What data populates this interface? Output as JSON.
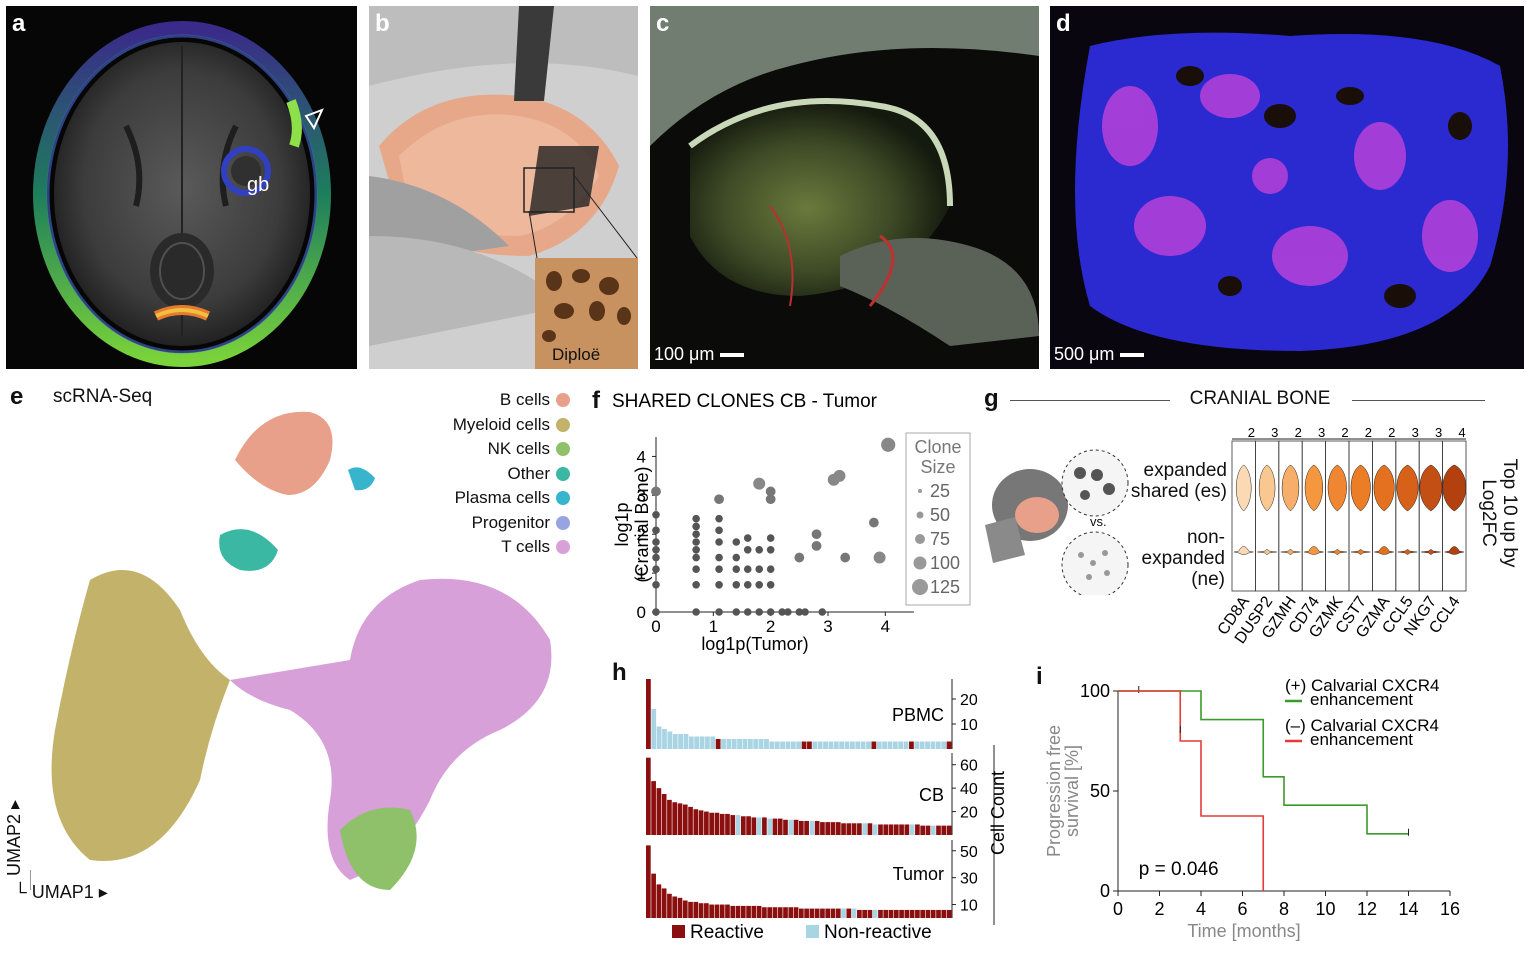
{
  "panels": {
    "a": {
      "label": "a",
      "annotation": "gb"
    },
    "b": {
      "label": "b",
      "inset_label": "Diploë"
    },
    "c": {
      "label": "c",
      "scalebar": "100 μm"
    },
    "d": {
      "label": "d",
      "scalebar": "500 μm"
    },
    "e": {
      "label": "e",
      "title": "scRNA-Seq",
      "axis_x": "UMAP1",
      "axis_y": "UMAP2",
      "legend": [
        {
          "name": "B cells",
          "color": "#e8a08a"
        },
        {
          "name": "Myeloid cells",
          "color": "#c3b26a"
        },
        {
          "name": "NK cells",
          "color": "#8fc06a"
        },
        {
          "name": "Other",
          "color": "#3bb8a4"
        },
        {
          "name": "Plasma cells",
          "color": "#38b4cc"
        },
        {
          "name": "Progenitor",
          "color": "#98a4e0"
        },
        {
          "name": "T cells",
          "color": "#d8a0d8"
        }
      ]
    },
    "f": {
      "label": "f"
    },
    "g": {
      "label": "g",
      "title": "CRANIAL BONE",
      "group_es": "expanded shared (es)",
      "group_ne": "non-expanded (ne)",
      "vs": "vs.",
      "right_label": "Top 10 up by Log2FC"
    },
    "h": {
      "label": "h"
    },
    "i": {
      "label": "i"
    }
  },
  "chart_data": [
    {
      "id": "f",
      "type": "scatter",
      "title": "SHARED CLONES CB - Tumor",
      "xlabel": "log1p(Tumor)",
      "ylabel": "log1p (Cranial Bone)",
      "xlim": [
        0,
        4.5
      ],
      "ylim": [
        0,
        4.5
      ],
      "xticks": [
        0,
        1,
        2,
        3,
        4
      ],
      "yticks": [
        0,
        1,
        2,
        3,
        4
      ],
      "size_legend_title": "Clone Size",
      "size_legend": [
        25,
        50,
        75,
        100,
        125
      ],
      "points": [
        {
          "x": 0,
          "y": 0,
          "s": 2
        },
        {
          "x": 0,
          "y": 0.7,
          "s": 2
        },
        {
          "x": 0,
          "y": 1.1,
          "s": 2
        },
        {
          "x": 0,
          "y": 1.4,
          "s": 2
        },
        {
          "x": 0,
          "y": 1.6,
          "s": 2
        },
        {
          "x": 0,
          "y": 1.8,
          "s": 2
        },
        {
          "x": 0,
          "y": 2.1,
          "s": 2
        },
        {
          "x": 0,
          "y": 2.5,
          "s": 2
        },
        {
          "x": 0,
          "y": 3.1,
          "s": 3
        },
        {
          "x": 0.7,
          "y": 0,
          "s": 2
        },
        {
          "x": 0.7,
          "y": 0.7,
          "s": 2
        },
        {
          "x": 0.7,
          "y": 1.1,
          "s": 2
        },
        {
          "x": 0.7,
          "y": 1.4,
          "s": 2
        },
        {
          "x": 0.7,
          "y": 1.6,
          "s": 2
        },
        {
          "x": 0.7,
          "y": 1.8,
          "s": 2
        },
        {
          "x": 0.7,
          "y": 2.0,
          "s": 2
        },
        {
          "x": 0.7,
          "y": 2.2,
          "s": 2
        },
        {
          "x": 0.7,
          "y": 2.4,
          "s": 2
        },
        {
          "x": 1.1,
          "y": 0,
          "s": 2
        },
        {
          "x": 1.1,
          "y": 0.7,
          "s": 2
        },
        {
          "x": 1.1,
          "y": 1.1,
          "s": 2
        },
        {
          "x": 1.1,
          "y": 1.4,
          "s": 2
        },
        {
          "x": 1.1,
          "y": 1.8,
          "s": 2
        },
        {
          "x": 1.1,
          "y": 2.1,
          "s": 2
        },
        {
          "x": 1.1,
          "y": 2.4,
          "s": 2
        },
        {
          "x": 1.1,
          "y": 2.9,
          "s": 3
        },
        {
          "x": 1.4,
          "y": 0,
          "s": 2
        },
        {
          "x": 1.4,
          "y": 0.7,
          "s": 2
        },
        {
          "x": 1.4,
          "y": 1.1,
          "s": 2
        },
        {
          "x": 1.4,
          "y": 1.4,
          "s": 2
        },
        {
          "x": 1.4,
          "y": 1.8,
          "s": 2
        },
        {
          "x": 1.6,
          "y": 0,
          "s": 2
        },
        {
          "x": 1.6,
          "y": 0.7,
          "s": 2
        },
        {
          "x": 1.6,
          "y": 1.1,
          "s": 2
        },
        {
          "x": 1.6,
          "y": 1.6,
          "s": 2
        },
        {
          "x": 1.6,
          "y": 1.9,
          "s": 2
        },
        {
          "x": 1.8,
          "y": 0,
          "s": 2
        },
        {
          "x": 1.8,
          "y": 0.7,
          "s": 2
        },
        {
          "x": 1.8,
          "y": 1.1,
          "s": 2
        },
        {
          "x": 1.8,
          "y": 1.6,
          "s": 2
        },
        {
          "x": 1.8,
          "y": 3.3,
          "s": 4
        },
        {
          "x": 2.0,
          "y": 0,
          "s": 2
        },
        {
          "x": 2.0,
          "y": 0.7,
          "s": 2
        },
        {
          "x": 2.0,
          "y": 1.1,
          "s": 2
        },
        {
          "x": 2.0,
          "y": 1.6,
          "s": 2
        },
        {
          "x": 2.0,
          "y": 1.9,
          "s": 2
        },
        {
          "x": 2.0,
          "y": 2.9,
          "s": 3
        },
        {
          "x": 2.0,
          "y": 3.1,
          "s": 3
        },
        {
          "x": 2.2,
          "y": 0,
          "s": 2
        },
        {
          "x": 2.3,
          "y": 0,
          "s": 2
        },
        {
          "x": 2.5,
          "y": 0,
          "s": 2
        },
        {
          "x": 2.5,
          "y": 1.4,
          "s": 3
        },
        {
          "x": 2.6,
          "y": 0,
          "s": 2
        },
        {
          "x": 2.8,
          "y": 1.7,
          "s": 3
        },
        {
          "x": 2.8,
          "y": 2.0,
          "s": 3
        },
        {
          "x": 2.9,
          "y": 0,
          "s": 2
        },
        {
          "x": 3.1,
          "y": 3.4,
          "s": 4
        },
        {
          "x": 3.2,
          "y": 3.5,
          "s": 4
        },
        {
          "x": 3.3,
          "y": 1.4,
          "s": 3
        },
        {
          "x": 3.8,
          "y": 2.3,
          "s": 3
        },
        {
          "x": 3.9,
          "y": 1.4,
          "s": 4
        },
        {
          "x": 4.05,
          "y": 4.3,
          "s": 5
        }
      ]
    },
    {
      "id": "g",
      "type": "violin",
      "genes": [
        "CD8A",
        "DUSP2",
        "GZMH",
        "CD74",
        "GZMK",
        "CST7",
        "GZMA",
        "CCL5",
        "NKG7",
        "CCL4"
      ],
      "top_scale": [
        "2",
        "3",
        "2",
        "3",
        "2",
        "2",
        "2",
        "3",
        "3",
        "4"
      ],
      "es_colors": [
        "#fbd9b4",
        "#f9c891",
        "#f7ae6a",
        "#f5973f",
        "#f08631",
        "#ec7d27",
        "#e4711f",
        "#d86119",
        "#c44f14",
        "#b3400f"
      ],
      "ne_colors": [
        "#fbd9b4",
        "#f9c891",
        "#f7ae6a",
        "#f5973f",
        "#f08631",
        "#ec7d27",
        "#e4711f",
        "#d86119",
        "#c44f14",
        "#b3400f"
      ]
    },
    {
      "id": "h",
      "type": "bar",
      "ylabel": "Cell Count",
      "legend": [
        "Reactive",
        "Non-reactive"
      ],
      "colors": {
        "reactive": "#8b0f0f",
        "nonreactive": "#a8d4e4"
      },
      "series": [
        {
          "name": "PBMC",
          "yticks": [
            10,
            20
          ],
          "ymax": 28,
          "values": [
            28,
            16,
            9,
            8,
            7,
            6,
            6,
            6,
            5,
            5,
            5,
            5,
            5,
            4,
            4,
            4,
            4,
            4,
            4,
            4,
            4,
            4,
            4,
            3,
            3,
            3,
            3,
            3,
            3,
            3,
            3,
            3,
            3,
            3,
            3,
            3,
            3,
            3,
            3,
            3,
            3,
            3,
            3,
            3,
            3,
            3,
            3,
            3,
            3,
            3,
            3,
            3,
            3,
            3,
            3,
            3,
            3
          ],
          "reactive": [
            0,
            13,
            29,
            30,
            42,
            49,
            56
          ]
        },
        {
          "name": "CB",
          "yticks": [
            20,
            40,
            60
          ],
          "ymax": 70,
          "values": [
            66,
            46,
            40,
            35,
            30,
            28,
            27,
            26,
            24,
            22,
            21,
            20,
            19,
            19,
            18,
            18,
            17,
            17,
            16,
            16,
            15,
            15,
            15,
            14,
            14,
            14,
            13,
            13,
            13,
            12,
            12,
            12,
            12,
            11,
            11,
            11,
            11,
            10,
            10,
            10,
            10,
            10,
            10,
            9,
            9,
            9,
            9,
            9,
            9,
            9,
            9,
            9,
            8,
            8,
            8,
            8,
            8,
            8
          ],
          "reactive": [
            0,
            1,
            2,
            3,
            4,
            5,
            6,
            7,
            8,
            9,
            10,
            11,
            12,
            13,
            14,
            15,
            16,
            18,
            19,
            20,
            22,
            24,
            25,
            26,
            28,
            29,
            30,
            32,
            33,
            34,
            35,
            36,
            37,
            38,
            39,
            40,
            42,
            44,
            45,
            46,
            47,
            48,
            49,
            51,
            52,
            53,
            55,
            56,
            57
          ]
        },
        {
          "name": "Tumor",
          "yticks": [
            10,
            30,
            50
          ],
          "ymax": 58,
          "values": [
            54,
            33,
            25,
            22,
            18,
            16,
            15,
            13,
            12,
            12,
            11,
            11,
            10,
            10,
            10,
            10,
            9,
            9,
            9,
            9,
            9,
            9,
            8,
            8,
            8,
            8,
            8,
            8,
            8,
            7,
            7,
            7,
            7,
            7,
            7,
            7,
            7,
            7,
            7,
            7,
            6,
            6,
            6,
            6,
            6,
            6,
            6,
            6,
            6,
            6,
            6,
            6,
            6,
            6,
            6,
            6,
            6,
            6
          ],
          "reactive": [
            0,
            1,
            2,
            3,
            4,
            5,
            6,
            7,
            8,
            9,
            10,
            11,
            12,
            13,
            14,
            15,
            16,
            17,
            18,
            19,
            20,
            21,
            22,
            23,
            24,
            25,
            26,
            27,
            28,
            29,
            30,
            31,
            32,
            33,
            34,
            35,
            36,
            38,
            40,
            41,
            42,
            44,
            45,
            46,
            47,
            48,
            49,
            50,
            51,
            52,
            53,
            54,
            55,
            56,
            57
          ]
        }
      ]
    },
    {
      "id": "i",
      "type": "line",
      "xlabel": "Time [months]",
      "ylabel": "Progression free survival [%]",
      "xlim": [
        0,
        16
      ],
      "ylim": [
        0,
        100
      ],
      "xticks": [
        0,
        2,
        4,
        6,
        8,
        10,
        12,
        14,
        16
      ],
      "yticks": [
        0,
        50,
        100
      ],
      "annotation": "p = 0.046",
      "series": [
        {
          "name": "(+) Calvarial CXCR4 enhancement",
          "color": "#3a9a2a",
          "steps": [
            [
              0,
              100
            ],
            [
              4,
              100
            ],
            [
              4,
              85.7
            ],
            [
              7,
              85.7
            ],
            [
              7,
              57.1
            ],
            [
              8,
              57.1
            ],
            [
              8,
              42.9
            ],
            [
              12,
              42.9
            ],
            [
              12,
              28.6
            ],
            [
              14,
              28.6
            ]
          ],
          "censor": [
            [
              1,
              100
            ],
            [
              14,
              28.6
            ]
          ]
        },
        {
          "name": "(–) Calvarial CXCR4 enhancement",
          "color": "#e43a3a",
          "steps": [
            [
              0,
              100
            ],
            [
              3,
              100
            ],
            [
              3,
              75
            ],
            [
              4,
              75
            ],
            [
              4,
              37.5
            ],
            [
              7,
              37.5
            ],
            [
              7,
              0
            ]
          ],
          "censor": [
            [
              3,
              80
            ]
          ]
        }
      ]
    }
  ]
}
